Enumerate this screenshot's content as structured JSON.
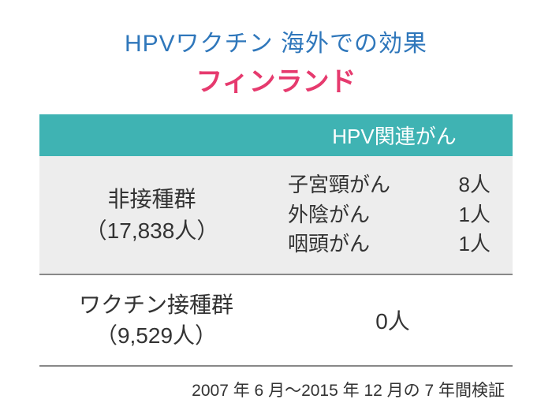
{
  "colors": {
    "title_main": "#2f77bb",
    "title_emphasis": "#e63a6e",
    "table_header_bg": "#3fb3b3",
    "row1_bg": "#ededed",
    "row2_bg": "#ffffff",
    "text": "#333333",
    "border": "#888888"
  },
  "title": {
    "line1": "HPVワクチン 海外での効果",
    "line2": "フィンランド"
  },
  "table": {
    "header": {
      "left": "",
      "right": "HPV関連がん"
    },
    "rows": [
      {
        "group_label": "非接種群",
        "group_count": "（17,838人）",
        "results": [
          {
            "name": "子宮頸がん",
            "count": "8人"
          },
          {
            "name": "外陰がん",
            "count": "1人"
          },
          {
            "name": "咽頭がん",
            "count": "1人"
          }
        ]
      },
      {
        "group_label": "ワクチン接種群",
        "group_count": "（9,529人）",
        "single_result": "0人"
      }
    ]
  },
  "footnote": "2007 年 6 月〜2015 年 12 月の 7 年間検証"
}
